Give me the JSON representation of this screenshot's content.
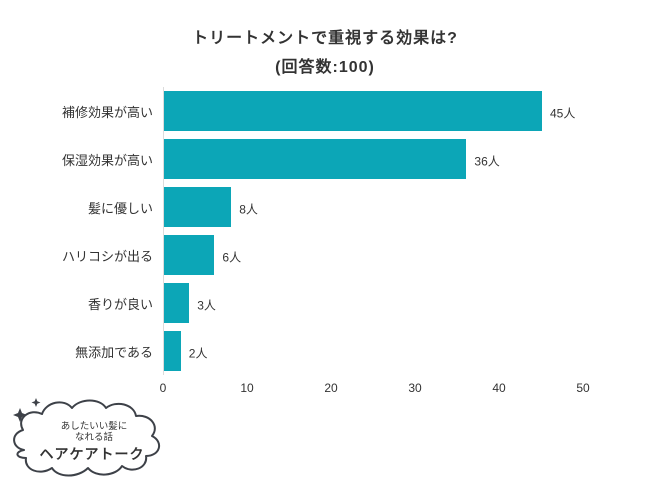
{
  "chart_data": {
    "type": "bar",
    "orientation": "horizontal",
    "title": "トリートメントで重視する効果は?",
    "subtitle": "(回答数:100)",
    "categories": [
      "補修効果が高い",
      "保湿効果が高い",
      "髪に優しい",
      "ハリコシが出る",
      "香りが良い",
      "無添加である"
    ],
    "values": [
      45,
      36,
      8,
      6,
      3,
      2
    ],
    "value_labels": [
      "45人",
      "36人",
      "8人",
      "6人",
      "3人",
      "2人"
    ],
    "x_ticks": [
      0,
      10,
      20,
      30,
      40,
      50
    ],
    "xlim": [
      0,
      50
    ],
    "xlabel": "",
    "ylabel": "",
    "grid": false,
    "legend": false,
    "bar_color": "#0ca6b7"
  },
  "logo": {
    "tagline_line1": "あしたいい髪に",
    "tagline_line2": "なれる話",
    "name": "ヘアケアトーク"
  }
}
